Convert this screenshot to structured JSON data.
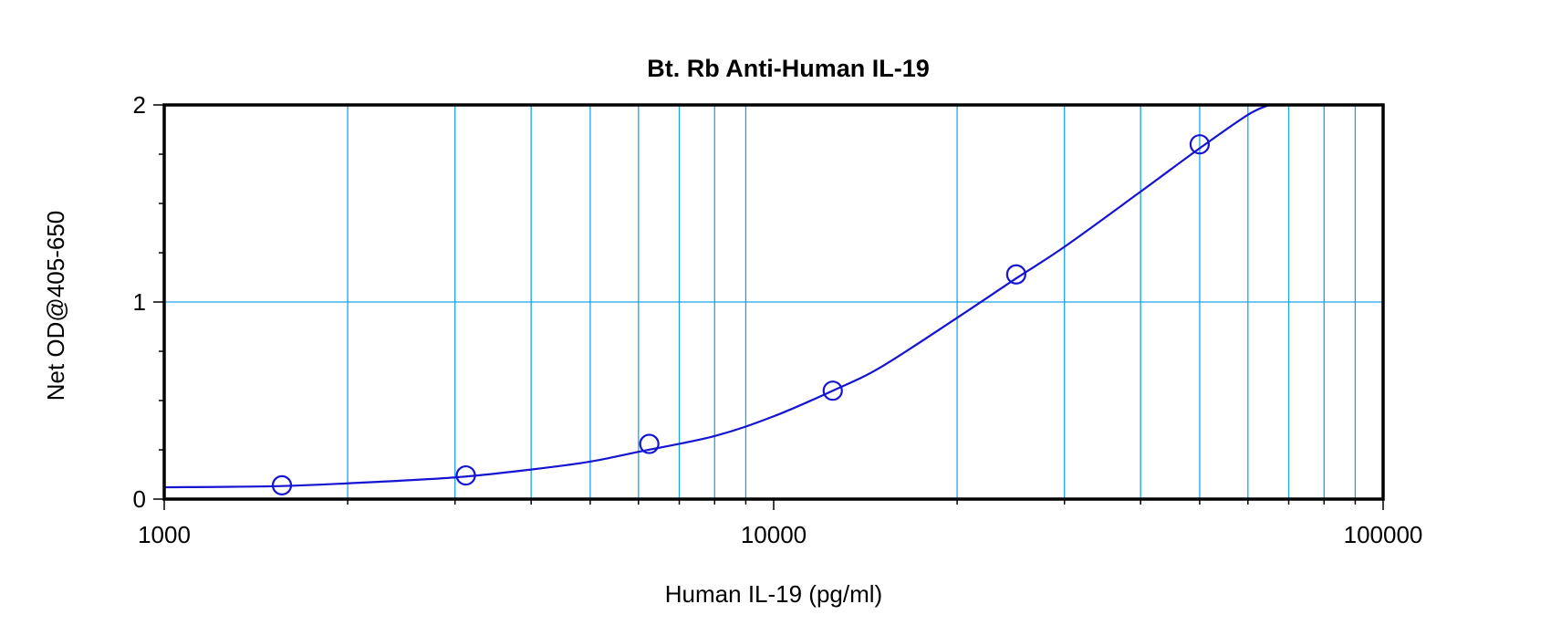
{
  "chart_data": {
    "type": "scatter",
    "title": "Bt. Rb Anti-Human IL-19",
    "xlabel": "Human IL-19 (pg/ml)",
    "ylabel": "Net OD@405-650",
    "x_scale": "log",
    "xlim": [
      1000,
      100000
    ],
    "ylim": [
      0,
      2
    ],
    "x_ticks": [
      "1000",
      "10000",
      "100000"
    ],
    "y_ticks": [
      "0",
      "1",
      "2"
    ],
    "grid": true,
    "series": [
      {
        "x": [
          1560,
          3125,
          6250,
          12500,
          25000,
          50000
        ],
        "y": [
          0.07,
          0.12,
          0.28,
          0.55,
          1.14,
          1.8
        ]
      }
    ],
    "fit_curve": {
      "x": [
        1000,
        1500,
        2000,
        3000,
        4000,
        5000,
        6000,
        8000,
        10000,
        12500,
        15000,
        20000,
        25000,
        30000,
        40000,
        50000,
        60000,
        65000
      ],
      "y": [
        0.06,
        0.065,
        0.08,
        0.11,
        0.15,
        0.19,
        0.24,
        0.32,
        0.42,
        0.55,
        0.67,
        0.92,
        1.12,
        1.28,
        1.56,
        1.78,
        1.95,
        2.0
      ]
    },
    "colors": {
      "series": "#1414d2",
      "grid": "#1aa3e6",
      "frame": "#000000"
    }
  }
}
